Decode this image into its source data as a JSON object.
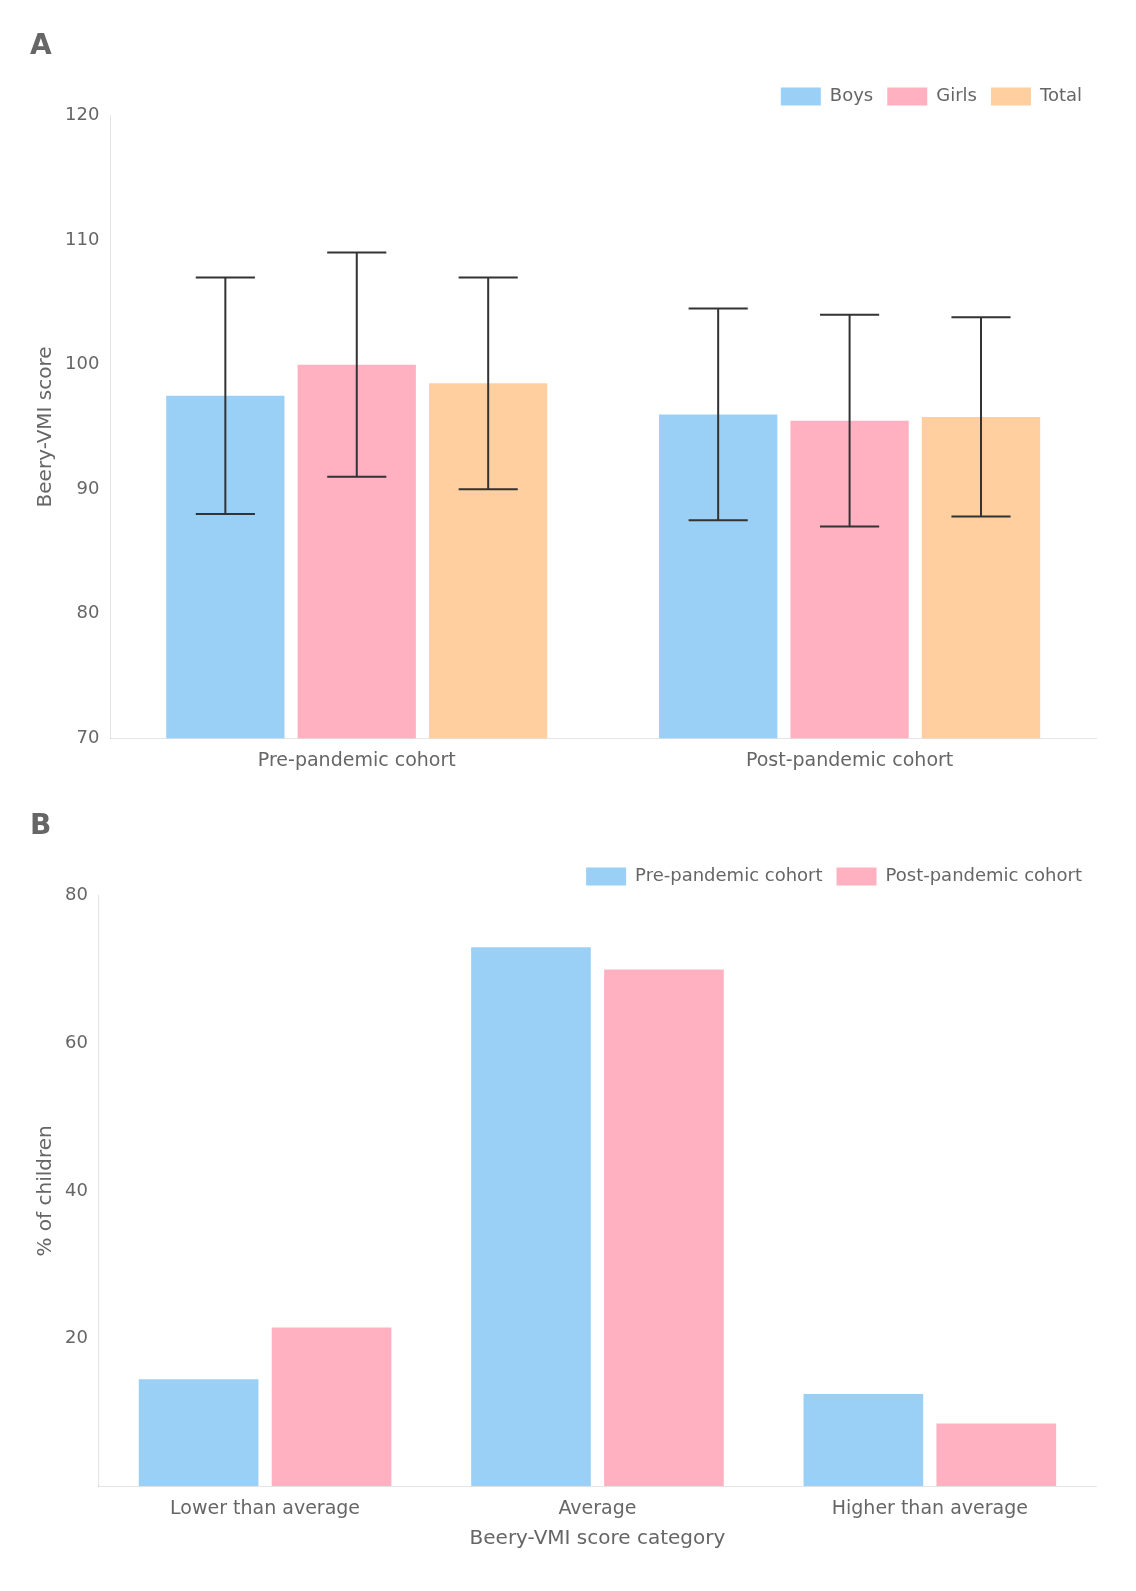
{
  "chart_data": [
    {
      "type": "bar",
      "title": "A",
      "categories": [
        "Pre-pandemic cohort",
        "Post-pandemic cohort"
      ],
      "series": [
        {
          "name": "Boys",
          "values": [
            97.5,
            96.0
          ],
          "errors": [
            9.5,
            8.5
          ]
        },
        {
          "name": "Girls",
          "values": [
            100.0,
            95.5
          ],
          "errors": [
            9.0,
            8.5
          ]
        },
        {
          "name": "Total",
          "values": [
            98.5,
            95.8
          ],
          "errors": [
            8.5,
            8.0
          ]
        }
      ],
      "ylabel": "Beery-VMI score",
      "ylim": [
        70,
        120
      ],
      "yticks": [
        70,
        80,
        90,
        100,
        110,
        120
      ],
      "grid": false,
      "legend": "upper right"
    },
    {
      "type": "bar",
      "title": "B",
      "categories": [
        "Lower than average",
        "Average",
        "Higher than average"
      ],
      "series": [
        {
          "name": "Pre-pandemic cohort",
          "values": [
            14.5,
            73.0,
            12.5
          ]
        },
        {
          "name": "Post-pandemic cohort",
          "values": [
            21.5,
            70.0,
            8.5
          ]
        }
      ],
      "xlabel": "Beery-VMI score category",
      "ylabel": "% of children",
      "ylim": [
        0,
        80
      ],
      "yticks": [
        20,
        40,
        60,
        80
      ],
      "grid": false,
      "legend": "upper right"
    }
  ]
}
